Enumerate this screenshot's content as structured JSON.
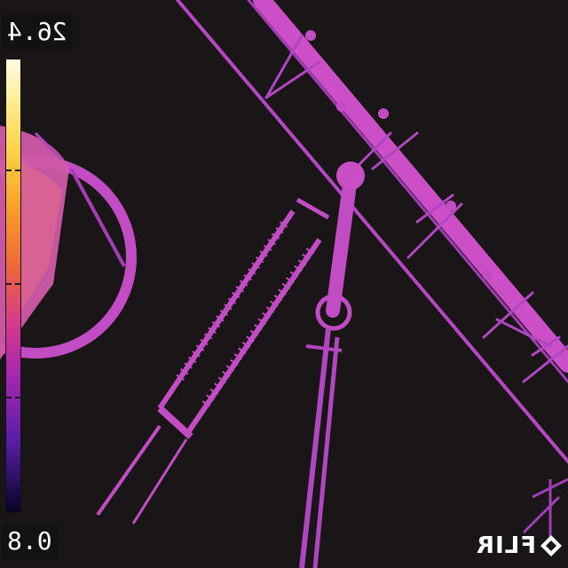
{
  "thermal": {
    "max_temp": "26.4",
    "min_temp": "0.8",
    "palette": "iron",
    "colors": {
      "background": "#1a1618",
      "hot": "#fff09a",
      "object": "#c94fc6"
    }
  },
  "brand": {
    "name": "FLIR",
    "icon": "flir-diamond-icon"
  }
}
